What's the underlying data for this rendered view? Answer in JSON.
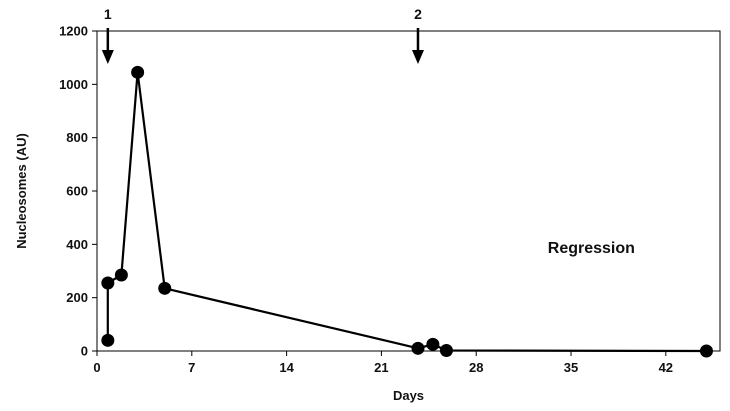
{
  "chart_data": {
    "type": "line",
    "xlabel": "Days",
    "ylabel": "Nucleosomes (AU)",
    "xlim": [
      0,
      46
    ],
    "ylim": [
      0,
      1200
    ],
    "xticks": [
      0,
      7,
      14,
      21,
      28,
      35,
      42
    ],
    "yticks": [
      0,
      200,
      400,
      600,
      800,
      1000,
      1200
    ],
    "grid": false,
    "series": [
      {
        "x": [
          0.8,
          0.8,
          1.8,
          3.0,
          5.0,
          23.7,
          24.8,
          25.8,
          45.0
        ],
        "y": [
          40,
          255,
          285,
          1045,
          235,
          10,
          25,
          2,
          0
        ]
      }
    ],
    "annotations": [
      {
        "text": "Regression",
        "x": 36.5,
        "y": 390
      }
    ],
    "markers": [
      {
        "label": "1",
        "x": 0.8
      },
      {
        "label": "2",
        "x": 23.7
      }
    ],
    "colors": {
      "line": "#000000",
      "axis": "#000000"
    }
  }
}
